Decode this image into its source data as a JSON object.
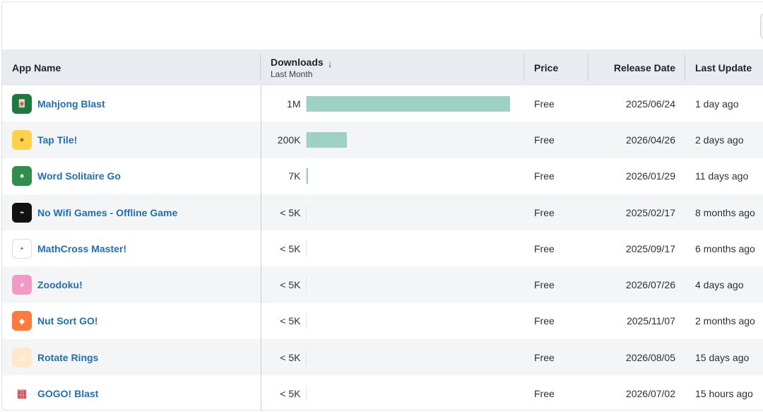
{
  "columns": {
    "app_name": "App Name",
    "downloads": "Downloads",
    "downloads_sub": "Last Month",
    "price": "Price",
    "release_date": "Release Date",
    "last_update": "Last Update"
  },
  "sort": {
    "column": "downloads",
    "direction": "descending",
    "icon": "arrow-down-icon"
  },
  "bar_color": "#9dd1c5",
  "link_color": "#1f6fb2",
  "rows": [
    {
      "name": "Mahjong Blast",
      "icon": "mahjong-tiles-icon",
      "downloads": "1M",
      "downloads_share": 1.0,
      "price": "Free",
      "release": "2025/06/24",
      "updated": "1 day ago"
    },
    {
      "name": "Tap Tile!",
      "icon": "tap-tile-icon",
      "downloads": "200K",
      "downloads_share": 0.2,
      "price": "Free",
      "release": "2026/04/26",
      "updated": "2 days ago"
    },
    {
      "name": "Word Solitaire Go",
      "icon": "solitaire-cards-icon",
      "downloads": "7K",
      "downloads_share": 0.007,
      "price": "Free",
      "release": "2026/01/29",
      "updated": "11 days ago"
    },
    {
      "name": "No Wifi Games - Offline Game",
      "icon": "no-wifi-icon",
      "downloads": "< 5K",
      "downloads_share": 0,
      "price": "Free",
      "release": "2025/02/17",
      "updated": "8 months ago"
    },
    {
      "name": "MathCross Master!",
      "icon": "math-grid-icon",
      "downloads": "< 5K",
      "downloads_share": 0,
      "price": "Free",
      "release": "2025/09/17",
      "updated": "6 months ago"
    },
    {
      "name": "Zoodoku!",
      "icon": "husky-dog-icon",
      "downloads": "< 5K",
      "downloads_share": 0,
      "price": "Free",
      "release": "2026/07/26",
      "updated": "4 days ago"
    },
    {
      "name": "Nut Sort GO!",
      "icon": "nut-sort-icon",
      "downloads": "< 5K",
      "downloads_share": 0,
      "price": "Free",
      "release": "2025/11/07",
      "updated": "2 months ago"
    },
    {
      "name": "Rotate Rings",
      "icon": "rings-icon",
      "downloads": "< 5K",
      "downloads_share": 0,
      "price": "Free",
      "release": "2026/08/05",
      "updated": "15 days ago"
    },
    {
      "name": "GOGO! Blast",
      "icon": "gogo-blast-icon",
      "downloads": "< 5K",
      "downloads_share": 0,
      "price": "Free",
      "release": "2026/07/02",
      "updated": "15 hours ago"
    }
  ]
}
